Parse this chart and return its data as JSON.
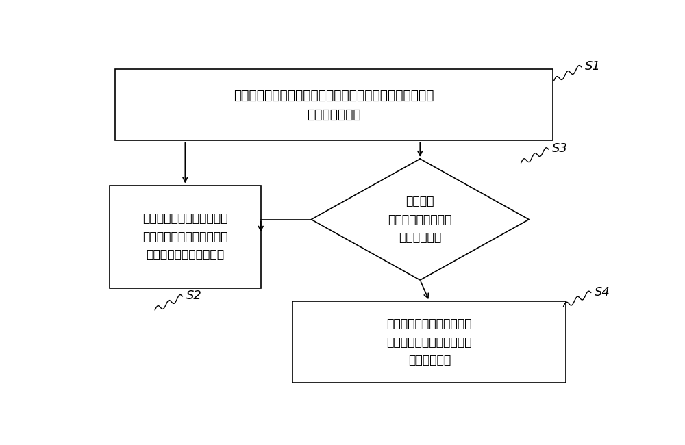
{
  "bg_color": "#ffffff",
  "border_color": "#000000",
  "text_color": "#000000",
  "s1_text": "接收用户发出的重载桌面安装指令，以实现将重载桌面安装\n在电视机终端上",
  "s2_text": "接收所述用户发出的重载桌\n面进入指令，以使所述电视\n机终端进入所述重载桌面",
  "s3_text": "判断所述\n电视机终端是否处于\n所述重载桌面",
  "s4_text": "接收用户发出的返回指令，\n直至所述电视机终端返回至\n所述重载桌面",
  "label_s1": "S1",
  "label_s2": "S2",
  "label_s3": "S3",
  "label_s4": "S4",
  "fontsize": 13.5,
  "label_fontsize": 13
}
